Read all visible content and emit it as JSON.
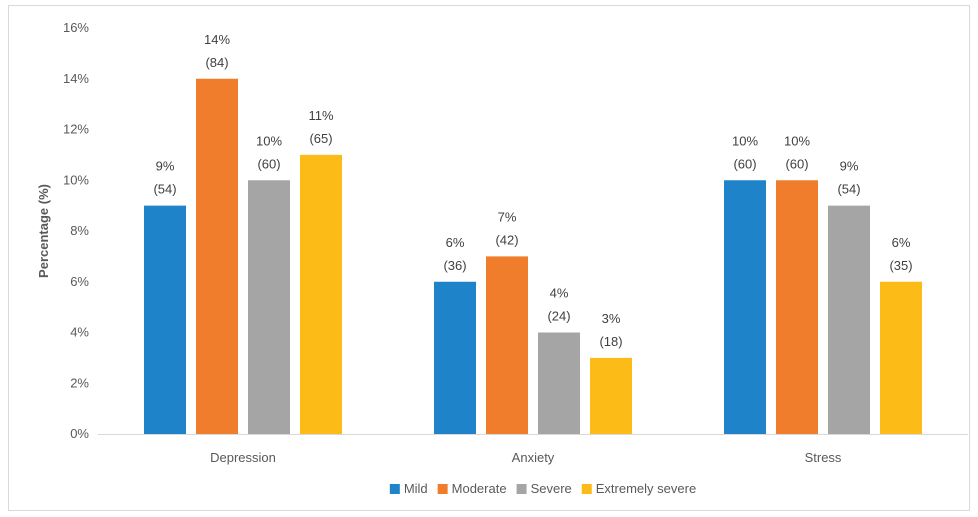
{
  "chart_data": {
    "type": "bar",
    "title": "",
    "xlabel": "",
    "ylabel": "Percentage (%)",
    "ylim": [
      0,
      16
    ],
    "y_ticks": [
      "0%",
      "2%",
      "4%",
      "6%",
      "8%",
      "10%",
      "12%",
      "14%",
      "16%"
    ],
    "grid": false,
    "legend_position": "bottom",
    "categories": [
      "Depression",
      "Anxiety",
      "Stress"
    ],
    "series": [
      {
        "name": "Mild",
        "color": "#1f83c9",
        "values": [
          9,
          6,
          10
        ],
        "labels": [
          [
            "9%",
            "(54)"
          ],
          [
            "6%",
            "(36)"
          ],
          [
            "10%",
            "(60)"
          ]
        ]
      },
      {
        "name": "Moderate",
        "color": "#ef7d2b",
        "values": [
          14,
          7,
          10
        ],
        "labels": [
          [
            "14%",
            "(84)"
          ],
          [
            "7%",
            "(42)"
          ],
          [
            "10%",
            "(60)"
          ]
        ]
      },
      {
        "name": "Severe",
        "color": "#a5a5a5",
        "values": [
          10,
          4,
          9
        ],
        "labels": [
          [
            "10%",
            "(60)"
          ],
          [
            "4%",
            "(24)"
          ],
          [
            "9%",
            "(54)"
          ]
        ]
      },
      {
        "name": "Extremely severe",
        "color": "#fdbb17",
        "values": [
          11,
          3,
          6
        ],
        "labels": [
          [
            "11%",
            "(65)"
          ],
          [
            "3%",
            "(18)"
          ],
          [
            "6%",
            "(35)"
          ]
        ]
      }
    ]
  }
}
